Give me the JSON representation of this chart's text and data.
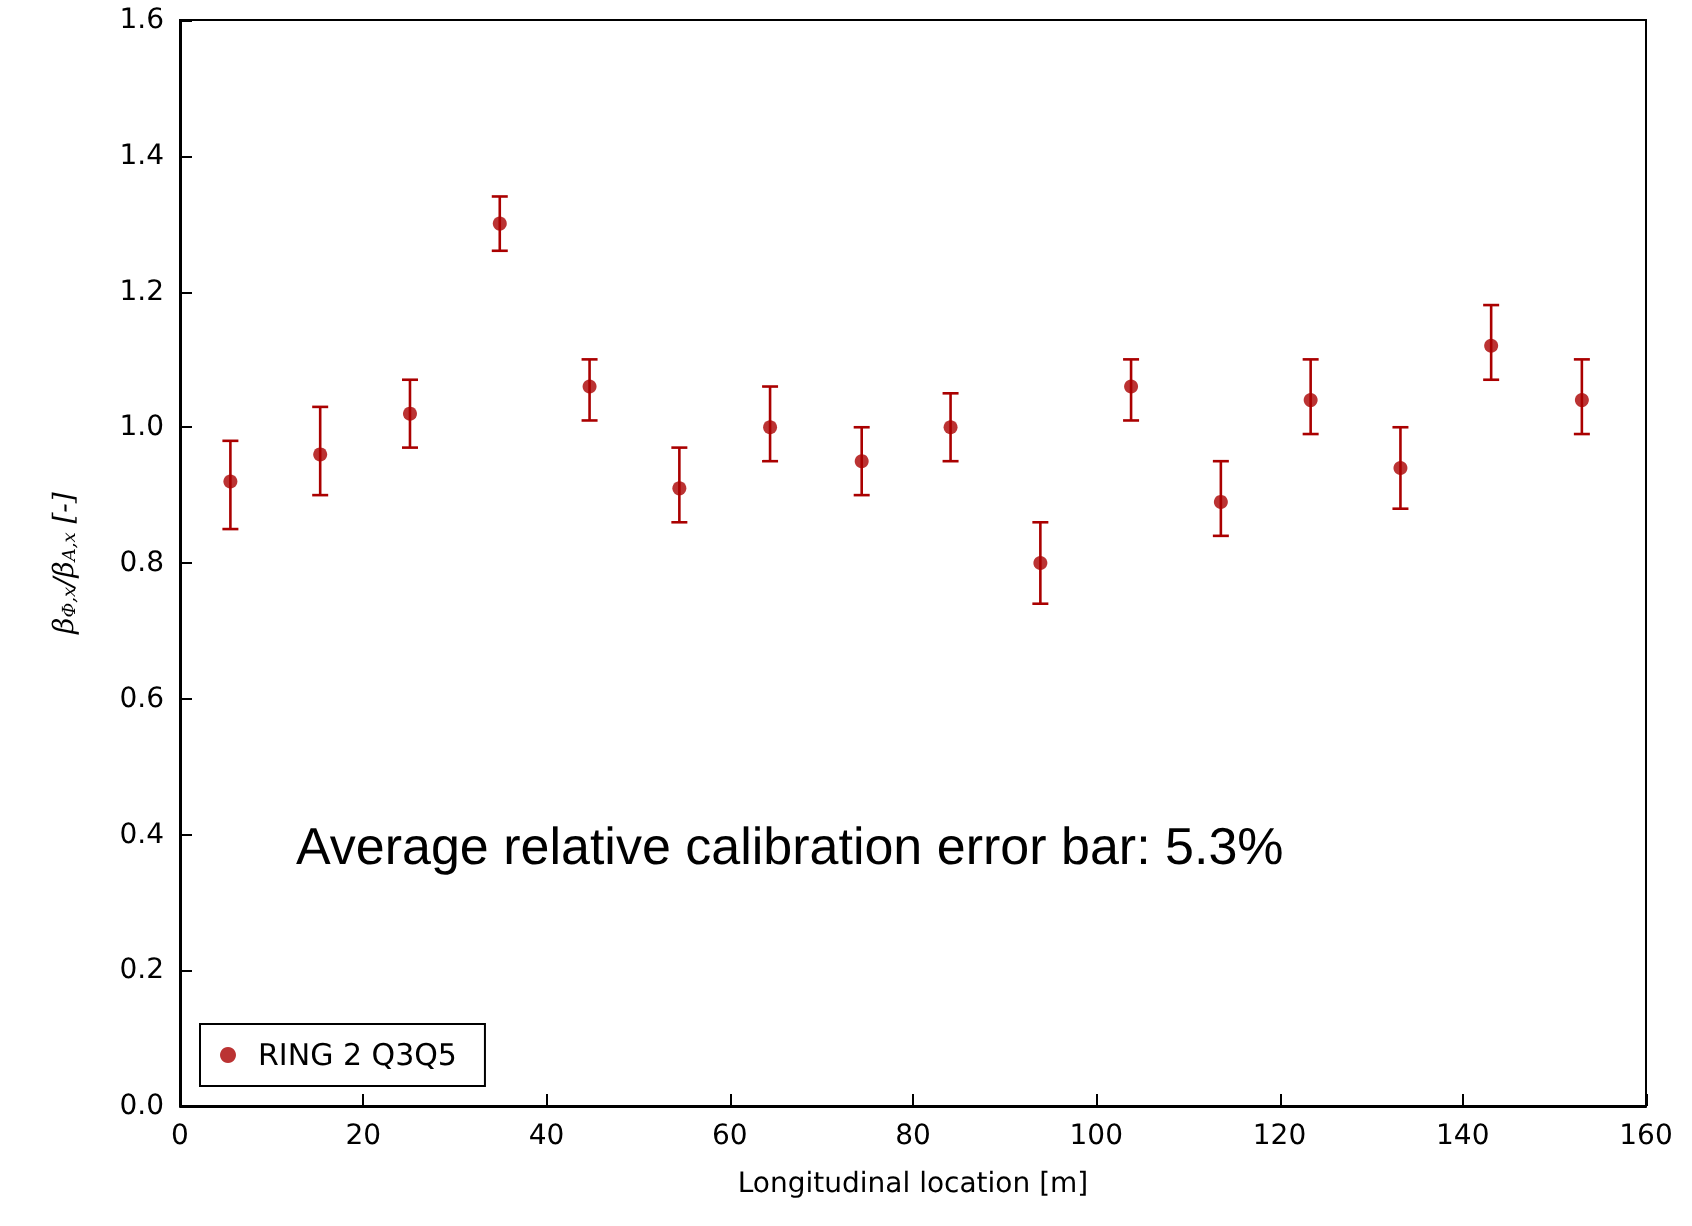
{
  "chart_data": {
    "type": "scatter",
    "xlabel": "Longitudinal location [m]",
    "ylabel": "β$_{Φ,x}$/β$_{A,x}$ [-]",
    "x": [
      5.5,
      15.3,
      25.1,
      34.9,
      44.7,
      54.5,
      64.4,
      74.4,
      84.1,
      93.9,
      103.8,
      113.6,
      123.4,
      133.2,
      143.1,
      153.0
    ],
    "series": [
      {
        "name": "RING 2 Q3Q5",
        "color": "#aa0000",
        "values": [
          0.92,
          0.96,
          1.02,
          1.3,
          1.06,
          0.91,
          1.0,
          0.95,
          1.0,
          0.8,
          1.06,
          0.89,
          1.04,
          0.94,
          1.12,
          1.04
        ],
        "errors": [
          [
            0.85,
            0.98
          ],
          [
            0.9,
            1.03
          ],
          [
            0.97,
            1.07
          ],
          [
            1.26,
            1.34
          ],
          [
            1.01,
            1.1
          ],
          [
            0.86,
            0.97
          ],
          [
            0.95,
            1.06
          ],
          [
            0.9,
            1.0
          ],
          [
            0.95,
            1.05
          ],
          [
            0.74,
            0.86
          ],
          [
            1.01,
            1.1
          ],
          [
            0.84,
            0.95
          ],
          [
            0.99,
            1.1
          ],
          [
            0.88,
            1.0
          ],
          [
            1.07,
            1.18
          ],
          [
            0.99,
            1.1
          ]
        ]
      }
    ],
    "annotations": [
      "Average relative calibration error bar: 5.3%"
    ],
    "xlim": [
      0,
      160
    ],
    "xticks": [
      0,
      20,
      40,
      60,
      80,
      100,
      120,
      140,
      160
    ],
    "ylim": [
      0,
      1.6
    ],
    "yticks": [
      {
        "value": 0,
        "label": "0.0"
      },
      {
        "value": 0.2,
        "label": "0.2"
      },
      {
        "value": 0.4,
        "label": "0.4"
      },
      {
        "value": 0.6,
        "label": "0.6"
      },
      {
        "value": 0.8,
        "label": "0.8"
      },
      {
        "value": 1.0,
        "label": "1.0"
      },
      {
        "value": 1.2,
        "label": "1.2"
      },
      {
        "value": 1.4,
        "label": "1.4"
      },
      {
        "value": 1.6,
        "label": "1.6"
      }
    ],
    "grid": false,
    "legend": "bottom left",
    "marker": "circle"
  }
}
